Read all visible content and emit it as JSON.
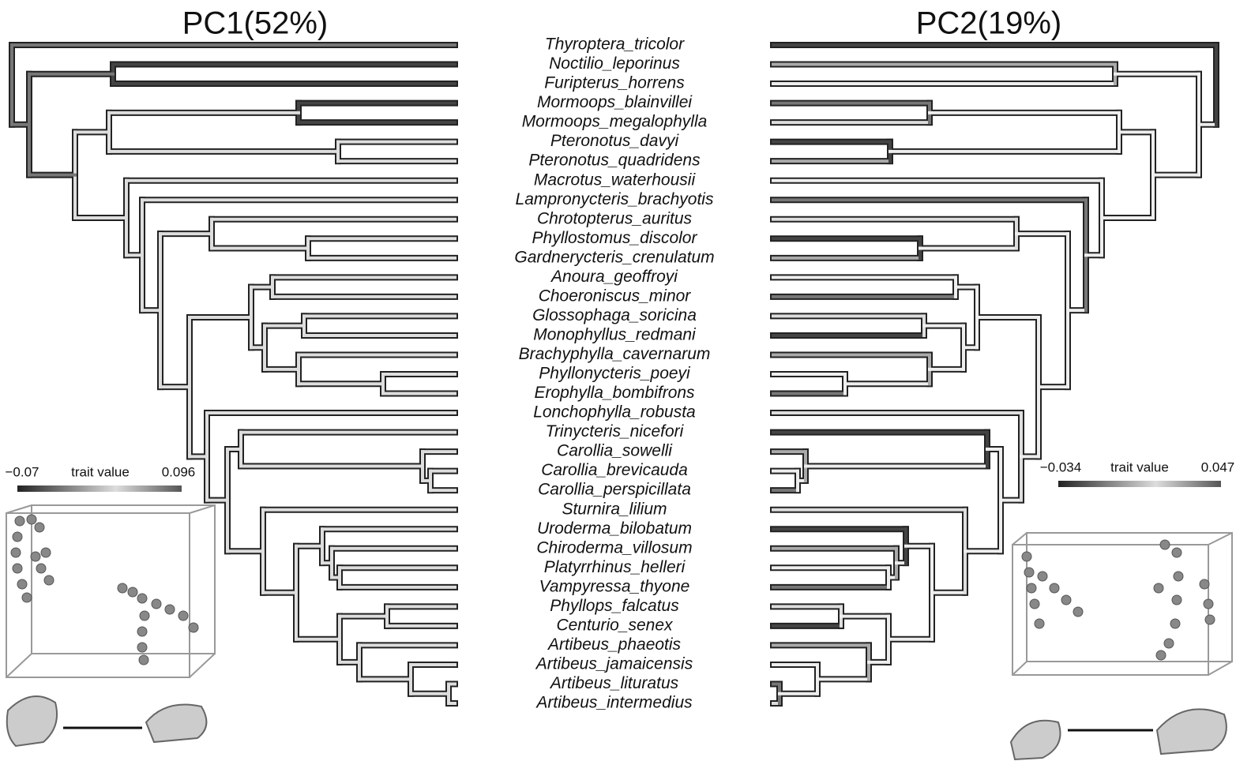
{
  "titles": [
    "PC1(52%)",
    "PC2(19%)"
  ],
  "taxa": [
    "Thyroptera_tricolor",
    "Noctilio_leporinus",
    "Furipterus_horrens",
    "Mormoops_blainvillei",
    "Mormoops_megalophylla",
    "Pteronotus_davyi",
    "Pteronotus_quadridens",
    "Macrotus_waterhousii",
    "Lampronycteris_brachyotis",
    "Chrotopterus_auritus",
    "Phyllostomus_discolor",
    "Gardnerycteris_crenulatum",
    "Anoura_geoffroyi",
    "Choeroniscus_minor",
    "Glossophaga_soricina",
    "Monophyllus_redmani",
    "Brachyphylla_cavernarum",
    "Phyllonycteris_poeyi",
    "Erophylla_bombifrons",
    "Lonchophylla_robusta",
    "Trinycteris_nicefori",
    "Carollia_sowelli",
    "Carollia_brevicauda",
    "Carollia_perspicillata",
    "Sturnira_lilium",
    "Uroderma_bilobatum",
    "Chiroderma_villosum",
    "Platyrrhinus_helleri",
    "Vampyressa_thyone",
    "Phyllops_falcatus",
    "Centurio_senex",
    "Artibeus_phaeotis",
    "Artibeus_jamaicensis",
    "Artibeus_lituratus",
    "Artibeus_intermedius"
  ],
  "legends": [
    {
      "min": "−0.07",
      "label": "trait value",
      "max": "0.096"
    },
    {
      "min": "−0.034",
      "label": "trait value",
      "max": "0.047"
    }
  ]
}
